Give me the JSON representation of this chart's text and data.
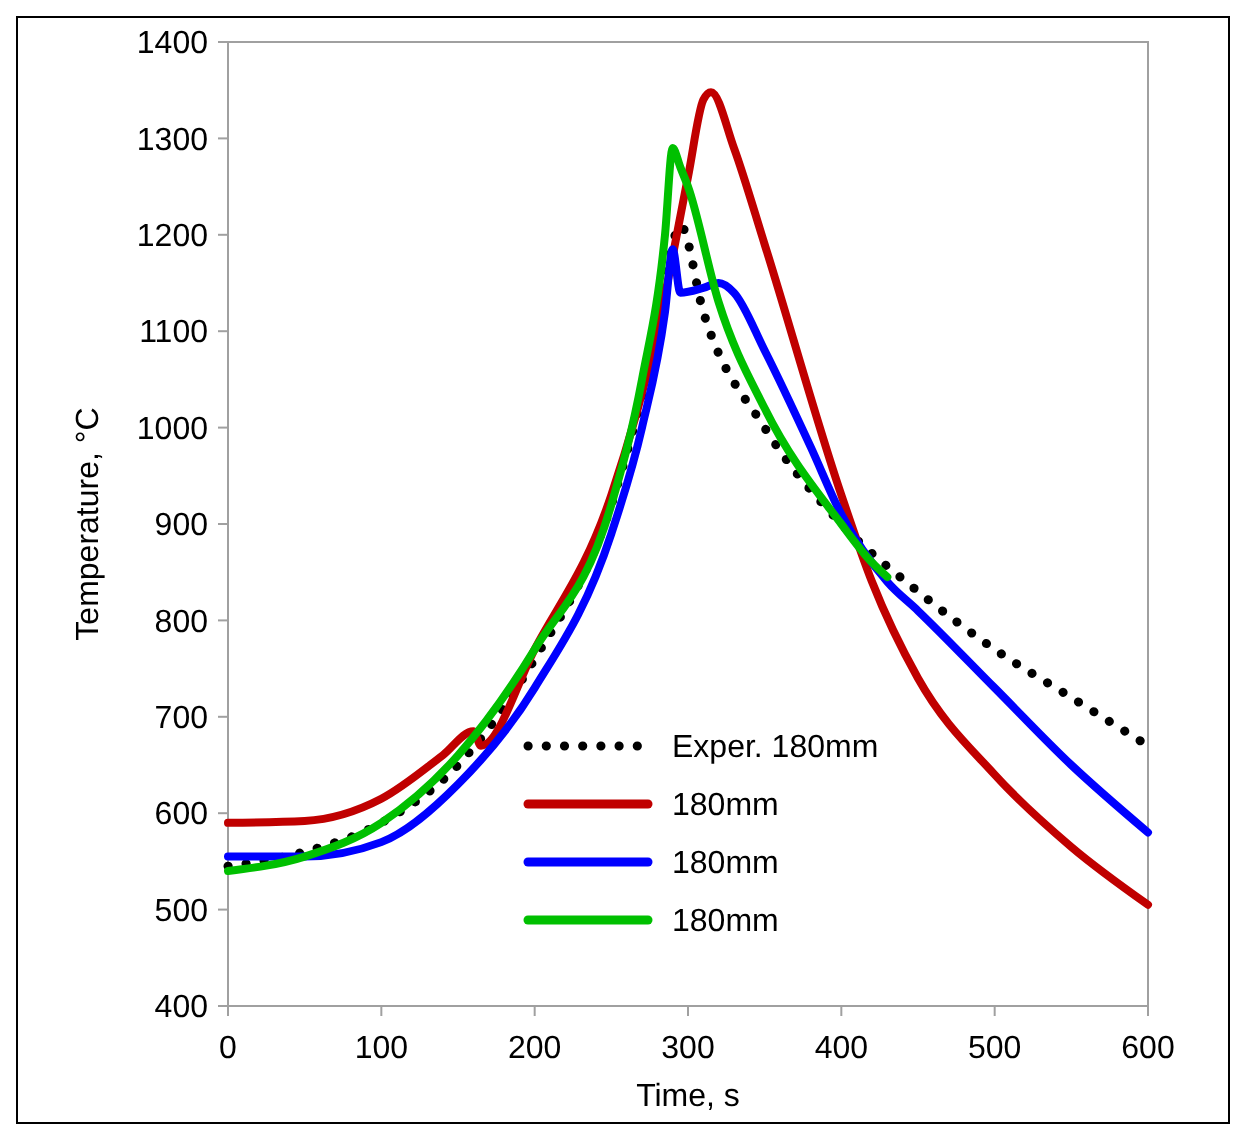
{
  "chart_data": {
    "type": "line",
    "xlabel": "Time, s",
    "ylabel": "Temperature, °C",
    "xlim": [
      0,
      600
    ],
    "xticks": [
      0,
      100,
      200,
      300,
      400,
      500,
      600
    ],
    "ylim": [
      400,
      1400
    ],
    "yticks": [
      400,
      500,
      600,
      700,
      800,
      900,
      1000,
      1100,
      1200,
      1300,
      1400
    ],
    "grid": false,
    "legend": "bottom",
    "series": [
      {
        "name": "Exper. 180mm",
        "color": "#000000",
        "line_style": "dotted",
        "x": [
          0,
          50,
          100,
          150,
          200,
          250,
          280,
          295,
          310,
          350,
          400,
          450,
          500,
          550,
          600
        ],
        "values": [
          545,
          560,
          590,
          650,
          760,
          920,
          1100,
          1210,
          1120,
          1000,
          900,
          830,
          770,
          720,
          670
        ]
      },
      {
        "name": "180mm",
        "color": "#c00000",
        "line_style": "solid",
        "x": [
          0,
          50,
          100,
          140,
          160,
          165,
          200,
          250,
          280,
          300,
          310,
          315,
          330,
          350,
          400,
          420,
          450,
          500,
          550,
          600
        ],
        "values": [
          590,
          592,
          615,
          660,
          685,
          670,
          770,
          930,
          1100,
          1260,
          1340,
          1348,
          1290,
          1190,
          930,
          840,
          740,
          640,
          565,
          505
        ]
      },
      {
        "name": "180mm",
        "color": "#0000ff",
        "line_style": "solid",
        "x": [
          0,
          50,
          100,
          150,
          200,
          250,
          270,
          285,
          290,
          295,
          310,
          320,
          330,
          350,
          380,
          400,
          430,
          450,
          500,
          550,
          600
        ],
        "values": [
          555,
          555,
          570,
          630,
          730,
          890,
          1000,
          1120,
          1185,
          1140,
          1145,
          1150,
          1140,
          1080,
          980,
          910,
          840,
          810,
          730,
          650,
          580
        ]
      },
      {
        "name": "180mm",
        "color": "#00c000",
        "line_style": "solid",
        "x": [
          0,
          50,
          100,
          150,
          200,
          250,
          270,
          285,
          290,
          295,
          300,
          320,
          350,
          400,
          420,
          430
        ],
        "values": [
          540,
          555,
          590,
          660,
          770,
          920,
          1050,
          1200,
          1290,
          1270,
          1250,
          1130,
          1020,
          900,
          860,
          845
        ]
      }
    ]
  }
}
